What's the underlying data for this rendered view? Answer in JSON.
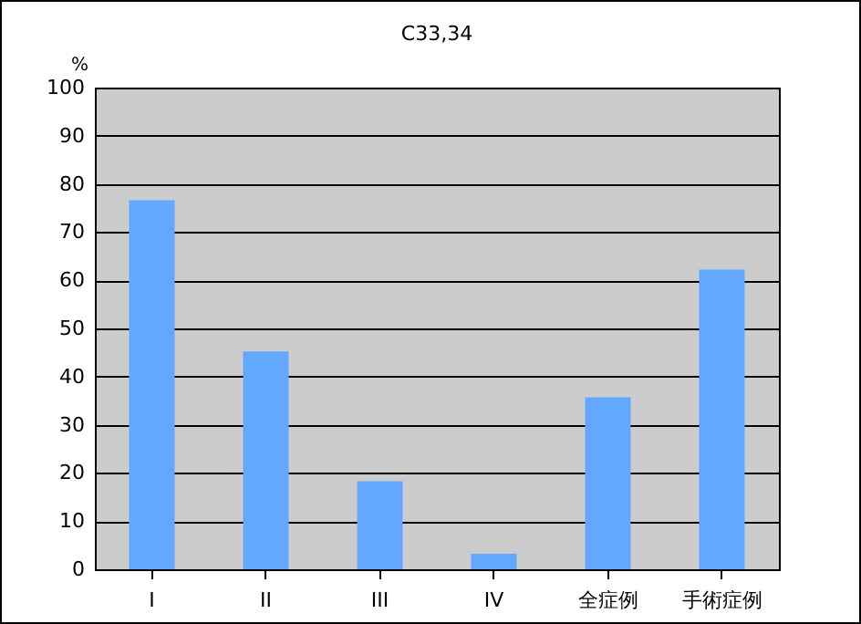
{
  "chart_data": {
    "type": "bar",
    "title": "C33,34",
    "ylabel": "%",
    "categories": [
      "I",
      "II",
      "III",
      "IV",
      "全症例",
      "手術症例"
    ],
    "values": [
      76.6,
      45.2,
      18.3,
      3.2,
      35.7,
      62.2
    ],
    "color": "#63a8ff",
    "ylim": [
      0,
      100
    ],
    "yticks": [
      0,
      10,
      20,
      30,
      40,
      50,
      60,
      70,
      80,
      90,
      100
    ],
    "grid": "y"
  }
}
